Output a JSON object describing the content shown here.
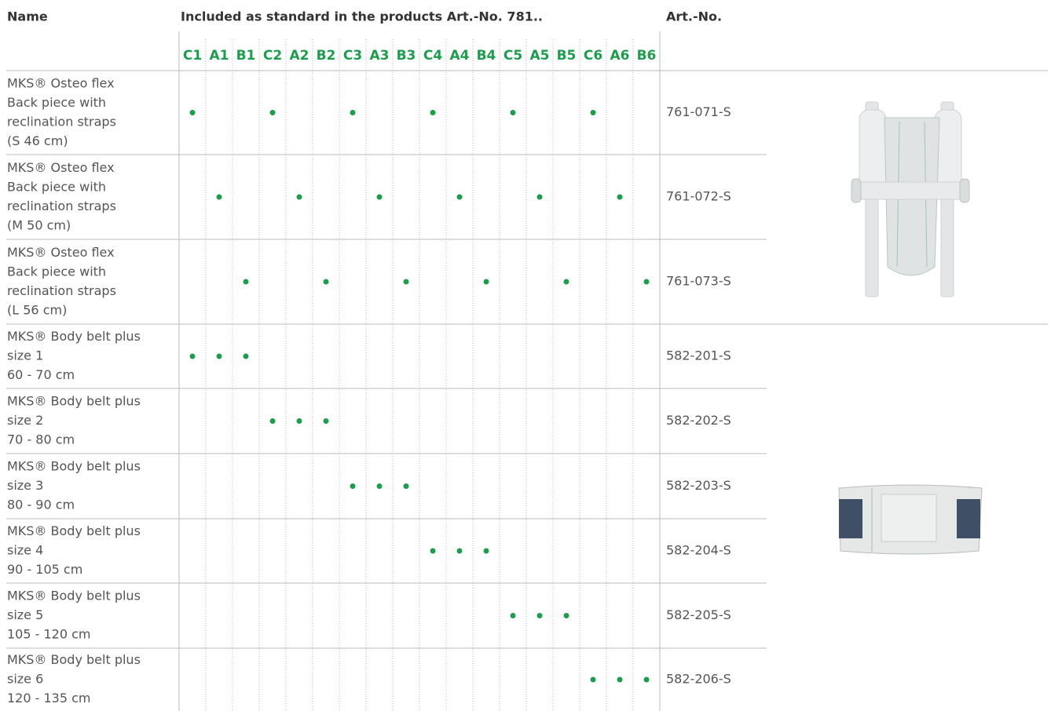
{
  "header": {
    "name": "Name",
    "included": "Included as standard in the products Art.-No. 781..",
    "art_no": "Art.-No."
  },
  "columns": [
    "C1",
    "A1",
    "B1",
    "C2",
    "A2",
    "B2",
    "C3",
    "A3",
    "B3",
    "C4",
    "A4",
    "B4",
    "C5",
    "A5",
    "B5",
    "C6",
    "A6",
    "B6"
  ],
  "rows": [
    {
      "name": [
        "MKS® Osteo flex",
        "Back piece with",
        "reclination straps",
        "(S 46 cm)"
      ],
      "included": [
        0,
        3,
        6,
        9,
        12,
        15
      ],
      "art_no": "761-071-S"
    },
    {
      "name": [
        "MKS® Osteo flex",
        "Back piece with",
        "reclination straps",
        "(M 50 cm)"
      ],
      "included": [
        1,
        4,
        7,
        10,
        13,
        16
      ],
      "art_no": "761-072-S"
    },
    {
      "name": [
        "MKS® Osteo flex",
        "Back piece with",
        "reclination straps",
        "(L 56 cm)"
      ],
      "included": [
        2,
        5,
        8,
        11,
        14,
        17
      ],
      "art_no": "761-073-S"
    },
    {
      "name": [
        "MKS® Body belt plus",
        "size 1",
        "60 - 70 cm"
      ],
      "included": [
        0,
        1,
        2
      ],
      "art_no": "582-201-S"
    },
    {
      "name": [
        "MKS® Body belt plus",
        "size 2",
        "70 - 80 cm"
      ],
      "included": [
        3,
        4,
        5
      ],
      "art_no": "582-202-S"
    },
    {
      "name": [
        "MKS® Body belt plus",
        "size 3",
        "80 - 90 cm"
      ],
      "included": [
        6,
        7,
        8
      ],
      "art_no": "582-203-S"
    },
    {
      "name": [
        "MKS® Body belt plus",
        "size 4",
        "90 - 105 cm"
      ],
      "included": [
        9,
        10,
        11
      ],
      "art_no": "582-204-S"
    },
    {
      "name": [
        "MKS® Body belt plus",
        "size 5",
        "105 - 120 cm"
      ],
      "included": [
        12,
        13,
        14
      ],
      "art_no": "582-205-S"
    },
    {
      "name": [
        "MKS® Body belt plus",
        "size 6",
        "120 - 135 cm"
      ],
      "included": [
        15,
        16,
        17
      ],
      "art_no": "582-206-S"
    }
  ]
}
